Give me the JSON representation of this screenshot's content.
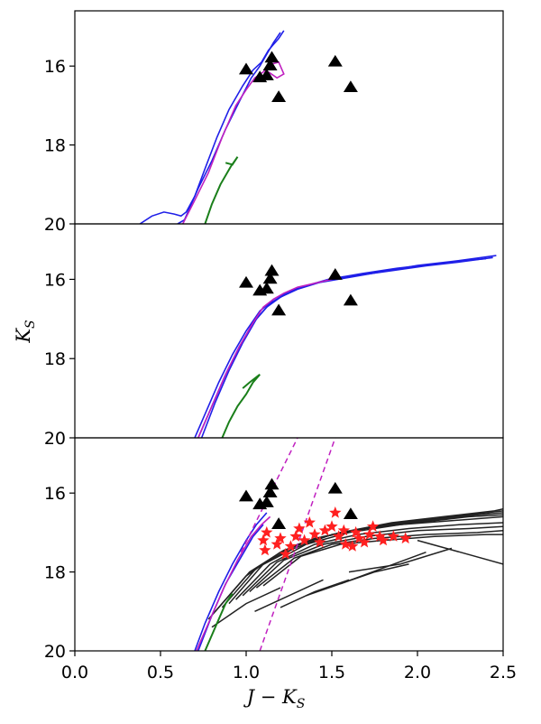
{
  "chart_data": {
    "type": "scatter",
    "layout": "three vertically stacked panels sharing the x-axis",
    "xlabel": "J − K",
    "xlabel_sub": "S",
    "ylabel": "K",
    "ylabel_sub": "S",
    "xlim": [
      0.0,
      2.5
    ],
    "ylim": [
      20,
      14.6
    ],
    "y_inverted": true,
    "grid": false,
    "x_ticks": [
      0.0,
      0.5,
      1.0,
      1.5,
      2.0,
      2.5
    ],
    "x_tick_labels": [
      "0.0",
      "0.5",
      "1.0",
      "1.5",
      "2.0",
      "2.5"
    ],
    "y_ticks": [
      16,
      18,
      20
    ],
    "y_tick_labels": [
      "16",
      "18",
      "20"
    ],
    "colors": {
      "blue": "#1f1fe8",
      "magenta": "#c020c0",
      "green": "#1a7f1a",
      "black": "#000000",
      "red": "#ff2020",
      "track_gray": "#222222"
    },
    "observed_triangles": [
      {
        "x": 1.0,
        "y": 16.1
      },
      {
        "x": 1.08,
        "y": 16.3
      },
      {
        "x": 1.12,
        "y": 16.25
      },
      {
        "x": 1.14,
        "y": 16.0
      },
      {
        "x": 1.15,
        "y": 15.8
      },
      {
        "x": 1.19,
        "y": 16.8
      },
      {
        "x": 1.52,
        "y": 15.9
      },
      {
        "x": 1.61,
        "y": 16.55
      }
    ],
    "panels": [
      {
        "name": "top",
        "series": [
          {
            "color": "blue",
            "x": [
              0.38,
              0.45,
              0.52,
              0.58,
              0.62,
              0.65,
              0.7,
              0.76,
              0.83,
              0.9,
              0.98,
              1.04,
              1.09,
              1.13,
              1.16,
              1.19,
              1.22
            ],
            "y": [
              20.0,
              19.8,
              19.7,
              19.75,
              19.8,
              19.7,
              19.3,
              18.6,
              17.8,
              17.1,
              16.5,
              16.1,
              15.9,
              15.6,
              15.45,
              15.3,
              15.1
            ]
          },
          {
            "color": "blue",
            "x": [
              0.6,
              0.64,
              0.66,
              0.72,
              0.8,
              0.88,
              0.96,
              1.03,
              1.08,
              1.12,
              1.16,
              1.2
            ],
            "y": [
              20.0,
              19.9,
              19.7,
              19.1,
              18.4,
              17.6,
              16.9,
              16.3,
              16.0,
              15.7,
              15.4,
              15.15
            ]
          },
          {
            "color": "magenta",
            "x": [
              0.63,
              0.7,
              0.78,
              0.86,
              0.94,
              1.0,
              1.05,
              1.1,
              1.15,
              1.19,
              1.22,
              1.18,
              1.13
            ],
            "y": [
              20.0,
              19.4,
              18.7,
              17.8,
              17.0,
              16.6,
              16.3,
              16.15,
              15.95,
              15.9,
              16.2,
              16.3,
              16.15
            ]
          },
          {
            "color": "green",
            "x": [
              0.76,
              0.8,
              0.85,
              0.91,
              0.95,
              0.92,
              0.88
            ],
            "y": [
              20.0,
              19.5,
              19.0,
              18.55,
              18.3,
              18.5,
              18.45
            ]
          }
        ]
      },
      {
        "name": "middle",
        "series": [
          {
            "color": "blue",
            "x": [
              0.7,
              0.76,
              0.84,
              0.92,
              1.0,
              1.08,
              1.16,
              1.25,
              1.4,
              1.6,
              1.8,
              2.0,
              2.2,
              2.46
            ],
            "y": [
              20.0,
              19.4,
              18.6,
              17.9,
              17.3,
              16.8,
              16.5,
              16.3,
              16.1,
              15.95,
              15.8,
              15.65,
              15.55,
              15.4
            ]
          },
          {
            "color": "blue",
            "x": [
              0.72,
              0.8,
              0.88,
              0.96,
              1.04,
              1.12,
              1.2,
              1.3,
              1.45,
              1.65,
              1.85,
              2.05,
              2.25,
              2.44
            ],
            "y": [
              20.0,
              19.2,
              18.4,
              17.7,
              17.1,
              16.7,
              16.45,
              16.25,
              16.05,
              15.9,
              15.78,
              15.66,
              15.56,
              15.45
            ]
          },
          {
            "color": "blue",
            "x": [
              0.74,
              0.82,
              0.9,
              0.98,
              1.06,
              1.14,
              1.22,
              1.32,
              1.48,
              1.68,
              1.88,
              2.08,
              2.28,
              2.4
            ],
            "y": [
              20.0,
              19.1,
              18.3,
              17.6,
              17.0,
              16.6,
              16.4,
              16.2,
              16.0,
              15.85,
              15.72,
              15.62,
              15.52,
              15.48
            ]
          },
          {
            "color": "magenta",
            "x": [
              0.72,
              0.8,
              0.88,
              0.96,
              1.04,
              1.1,
              1.16,
              1.22,
              1.3,
              1.4,
              1.5
            ],
            "y": [
              20.0,
              19.2,
              18.4,
              17.7,
              17.1,
              16.7,
              16.5,
              16.35,
              16.2,
              16.1,
              16.0
            ]
          },
          {
            "color": "green",
            "x": [
              0.86,
              0.9,
              0.95,
              1.0,
              1.04,
              1.08,
              1.02,
              0.98
            ],
            "y": [
              20.0,
              19.6,
              19.2,
              18.9,
              18.6,
              18.4,
              18.6,
              18.75
            ]
          }
        ]
      },
      {
        "name": "bottom",
        "reddening_lines": [
          {
            "x": [
              1.08,
              1.52
            ],
            "y": [
              20.0,
              14.6
            ]
          },
          {
            "x": [
              0.97,
              1.3
            ],
            "y": [
              17.5,
              14.6
            ]
          }
        ],
        "red_stars": [
          {
            "x": 1.1,
            "y": 17.2
          },
          {
            "x": 1.11,
            "y": 17.45
          },
          {
            "x": 1.12,
            "y": 17.0
          },
          {
            "x": 1.18,
            "y": 17.3
          },
          {
            "x": 1.2,
            "y": 17.15
          },
          {
            "x": 1.23,
            "y": 17.55
          },
          {
            "x": 1.26,
            "y": 17.35
          },
          {
            "x": 1.29,
            "y": 17.1
          },
          {
            "x": 1.31,
            "y": 16.9
          },
          {
            "x": 1.34,
            "y": 17.2
          },
          {
            "x": 1.37,
            "y": 16.75
          },
          {
            "x": 1.4,
            "y": 17.05
          },
          {
            "x": 1.43,
            "y": 17.25
          },
          {
            "x": 1.46,
            "y": 16.95
          },
          {
            "x": 1.5,
            "y": 16.85
          },
          {
            "x": 1.52,
            "y": 16.5
          },
          {
            "x": 1.54,
            "y": 17.1
          },
          {
            "x": 1.57,
            "y": 16.95
          },
          {
            "x": 1.58,
            "y": 17.3
          },
          {
            "x": 1.62,
            "y": 17.35
          },
          {
            "x": 1.64,
            "y": 17.0
          },
          {
            "x": 1.66,
            "y": 17.15
          },
          {
            "x": 1.69,
            "y": 17.25
          },
          {
            "x": 1.72,
            "y": 17.05
          },
          {
            "x": 1.74,
            "y": 16.85
          },
          {
            "x": 1.78,
            "y": 17.1
          },
          {
            "x": 1.8,
            "y": 17.2
          },
          {
            "x": 1.86,
            "y": 17.1
          },
          {
            "x": 1.93,
            "y": 17.15
          }
        ],
        "black_tracks": [
          {
            "x": [
              0.78,
              1.0,
              1.2,
              1.4,
              1.7,
              2.0,
              2.3,
              2.5
            ],
            "y": [
              19.2,
              18.1,
              17.5,
              17.15,
              16.9,
              16.75,
              16.6,
              16.55
            ]
          },
          {
            "x": [
              0.82,
              1.02,
              1.22,
              1.45,
              1.75,
              2.05,
              2.35,
              2.5
            ],
            "y": [
              19.0,
              18.0,
              17.45,
              17.1,
              16.85,
              16.7,
              16.55,
              16.5
            ]
          },
          {
            "x": [
              0.86,
              1.06,
              1.28,
              1.5,
              1.8,
              2.1,
              2.4,
              2.5
            ],
            "y": [
              18.9,
              17.9,
              17.4,
              17.05,
              16.8,
              16.65,
              16.5,
              16.45
            ]
          },
          {
            "x": [
              0.9,
              1.1,
              1.3,
              1.55,
              1.85,
              2.15,
              2.45,
              2.5
            ],
            "y": [
              18.8,
              17.8,
              17.3,
              17.0,
              16.75,
              16.6,
              16.45,
              16.4
            ]
          },
          {
            "x": [
              0.94,
              1.14,
              1.35,
              1.6,
              1.9,
              2.2,
              2.5
            ],
            "y": [
              18.7,
              17.8,
              17.3,
              17.0,
              16.8,
              16.7,
              16.6
            ]
          },
          {
            "x": [
              0.98,
              1.18,
              1.4,
              1.65,
              1.95,
              2.25,
              2.5
            ],
            "y": [
              18.6,
              17.75,
              17.3,
              17.05,
              16.9,
              16.8,
              16.75
            ]
          },
          {
            "x": [
              1.02,
              1.22,
              1.45,
              1.7,
              2.0,
              2.3,
              2.5
            ],
            "y": [
              18.5,
              17.7,
              17.3,
              17.1,
              16.95,
              16.9,
              16.85
            ]
          },
          {
            "x": [
              1.06,
              1.28,
              1.5,
              1.75,
              2.05,
              2.35,
              2.5
            ],
            "y": [
              18.4,
              17.65,
              17.3,
              17.15,
              17.05,
              17.0,
              16.95
            ]
          },
          {
            "x": [
              1.1,
              1.32,
              1.55,
              1.8,
              2.1,
              2.4,
              2.5
            ],
            "y": [
              18.35,
              17.6,
              17.3,
              17.2,
              17.1,
              17.05,
              17.05
            ]
          },
          {
            "x": [
              0.8,
              1.0,
              1.2
            ],
            "y": [
              19.4,
              18.8,
              18.4
            ]
          },
          {
            "x": [
              1.05,
              1.25,
              1.45
            ],
            "y": [
              19.0,
              18.6,
              18.2
            ]
          },
          {
            "x": [
              1.2,
              1.4,
              1.6
            ],
            "y": [
              18.9,
              18.5,
              18.2
            ]
          },
          {
            "x": [
              1.35,
              1.55,
              1.75,
              1.95
            ],
            "y": [
              18.6,
              18.3,
              18.0,
              17.8
            ]
          },
          {
            "x": [
              1.55,
              1.8,
              2.05
            ],
            "y": [
              18.3,
              17.9,
              17.5
            ]
          },
          {
            "x": [
              2.0,
              2.25,
              2.5
            ],
            "y": [
              17.2,
              17.5,
              17.8
            ]
          },
          {
            "x": [
              1.6,
              1.9,
              2.2
            ],
            "y": [
              18.0,
              17.8,
              17.4
            ]
          }
        ],
        "series": [
          {
            "color": "blue",
            "x": [
              0.7,
              0.76,
              0.84,
              0.92,
              1.0,
              1.06,
              1.12
            ],
            "y": [
              20.0,
              19.3,
              18.5,
              17.8,
              17.2,
              16.8,
              16.5
            ]
          },
          {
            "color": "blue",
            "x": [
              0.72,
              0.8,
              0.88,
              0.96,
              1.04,
              1.1
            ],
            "y": [
              20.0,
              19.1,
              18.3,
              17.7,
              17.1,
              16.8
            ]
          },
          {
            "color": "magenta",
            "x": [
              0.71,
              0.79,
              0.87,
              0.95,
              1.03,
              1.09,
              1.14
            ],
            "y": [
              20.0,
              19.2,
              18.4,
              17.7,
              17.1,
              16.8,
              16.6
            ]
          },
          {
            "color": "green",
            "x": [
              0.76,
              0.8,
              0.84,
              0.88,
              0.92
            ],
            "y": [
              20.0,
              19.6,
              19.2,
              18.8,
              18.55
            ]
          }
        ]
      }
    ]
  }
}
